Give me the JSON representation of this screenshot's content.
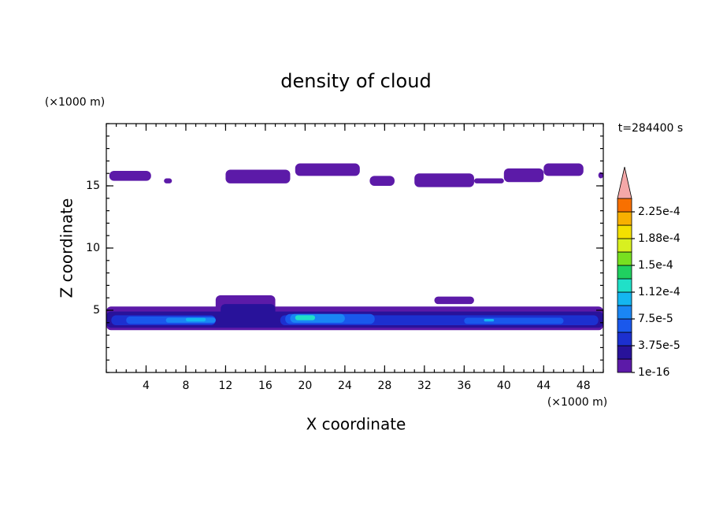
{
  "chart_data": {
    "type": "contour",
    "title": "density of cloud",
    "x_label": "X coordinate",
    "y_label": "Z coordinate",
    "x_unit": "(×1000 m)",
    "y_unit": "(×1000 m)",
    "time_label": "t=284400 s",
    "xlim": [
      0,
      50
    ],
    "ylim": [
      0,
      20
    ],
    "xticks": [
      4,
      8,
      12,
      16,
      20,
      24,
      28,
      32,
      36,
      40,
      44,
      48
    ],
    "yticks": [
      5,
      10,
      15
    ],
    "levels": [
      1e-16,
      1.875e-05,
      3.75e-05,
      5.625e-05,
      7.5e-05,
      9.375e-05,
      0.0001125,
      0.00013125,
      0.00015,
      0.00016875,
      0.0001875,
      0.00020625,
      0.000225,
      0.00024375
    ],
    "colors": [
      "#5c1aa8",
      "#28129a",
      "#1c30d0",
      "#1a58ec",
      "#1a86f4",
      "#14b6f0",
      "#20e0c8",
      "#20d060",
      "#78e020",
      "#d8f020",
      "#f4e000",
      "#f8b000",
      "#f87000",
      "#f4a8a8"
    ],
    "colorbar_ticks": [
      {
        "value": 1e-16,
        "label": "1e-16"
      },
      {
        "value": 3.75e-05,
        "label": "3.75e-5"
      },
      {
        "value": 7.5e-05,
        "label": "7.5e-5"
      },
      {
        "value": 0.0001125,
        "label": "1.12e-4"
      },
      {
        "value": 0.00015,
        "label": "1.5e-4"
      },
      {
        "value": 0.0001875,
        "label": "1.88e-4"
      },
      {
        "value": 0.000225,
        "label": "2.25e-4"
      }
    ],
    "regions": [
      {
        "x": [
          0.3,
          4.5
        ],
        "z": [
          15.4,
          16.2
        ],
        "value": 1e-16
      },
      {
        "x": [
          5.8,
          6.6
        ],
        "z": [
          15.2,
          15.6
        ],
        "value": 1e-16
      },
      {
        "x": [
          12,
          18.5
        ],
        "z": [
          15.2,
          16.3
        ],
        "value": 1e-16
      },
      {
        "x": [
          19,
          25.5
        ],
        "z": [
          15.8,
          16.8
        ],
        "value": 1e-16
      },
      {
        "x": [
          26.5,
          29
        ],
        "z": [
          15,
          15.8
        ],
        "value": 1e-16
      },
      {
        "x": [
          31,
          37
        ],
        "z": [
          14.9,
          16
        ],
        "value": 1e-16
      },
      {
        "x": [
          37,
          40
        ],
        "z": [
          15.2,
          15.6
        ],
        "value": 1e-16
      },
      {
        "x": [
          40,
          44
        ],
        "z": [
          15.3,
          16.4
        ],
        "value": 1e-16
      },
      {
        "x": [
          44,
          48
        ],
        "z": [
          15.8,
          16.8
        ],
        "value": 1e-16
      },
      {
        "x": [
          49.5,
          50
        ],
        "z": [
          15.6,
          16.1
        ],
        "value": 1e-16
      },
      {
        "x": [
          0,
          50
        ],
        "z": [
          3.4,
          5.3
        ],
        "value": 1e-16
      },
      {
        "x": [
          11,
          17
        ],
        "z": [
          4.4,
          6.2
        ],
        "value": 1e-16
      },
      {
        "x": [
          33,
          37
        ],
        "z": [
          5.5,
          6.1
        ],
        "value": 1e-16
      },
      {
        "x": [
          0,
          50
        ],
        "z": [
          3.6,
          4.9
        ],
        "value": 1.875e-05
      },
      {
        "x": [
          11.5,
          17
        ],
        "z": [
          4.2,
          5.5
        ],
        "value": 1.875e-05
      },
      {
        "x": [
          0.5,
          11
        ],
        "z": [
          3.8,
          4.6
        ],
        "value": 3.75e-05
      },
      {
        "x": [
          17.5,
          49.5
        ],
        "z": [
          3.8,
          4.6
        ],
        "value": 3.75e-05
      },
      {
        "x": [
          2,
          11
        ],
        "z": [
          3.9,
          4.5
        ],
        "value": 5.625e-05
      },
      {
        "x": [
          18,
          27
        ],
        "z": [
          3.9,
          4.7
        ],
        "value": 5.625e-05
      },
      {
        "x": [
          36,
          46
        ],
        "z": [
          3.9,
          4.4
        ],
        "value": 5.625e-05
      },
      {
        "x": [
          6,
          11
        ],
        "z": [
          4,
          4.4
        ],
        "value": 7.5e-05
      },
      {
        "x": [
          18.5,
          24
        ],
        "z": [
          4,
          4.7
        ],
        "value": 7.5e-05
      },
      {
        "x": [
          8,
          10
        ],
        "z": [
          4.1,
          4.4
        ],
        "value": 9.375e-05
      },
      {
        "x": [
          38,
          39
        ],
        "z": [
          4.1,
          4.3
        ],
        "value": 9.375e-05
      },
      {
        "x": [
          19,
          21
        ],
        "z": [
          4.2,
          4.6
        ],
        "value": 0.0001125
      }
    ]
  }
}
